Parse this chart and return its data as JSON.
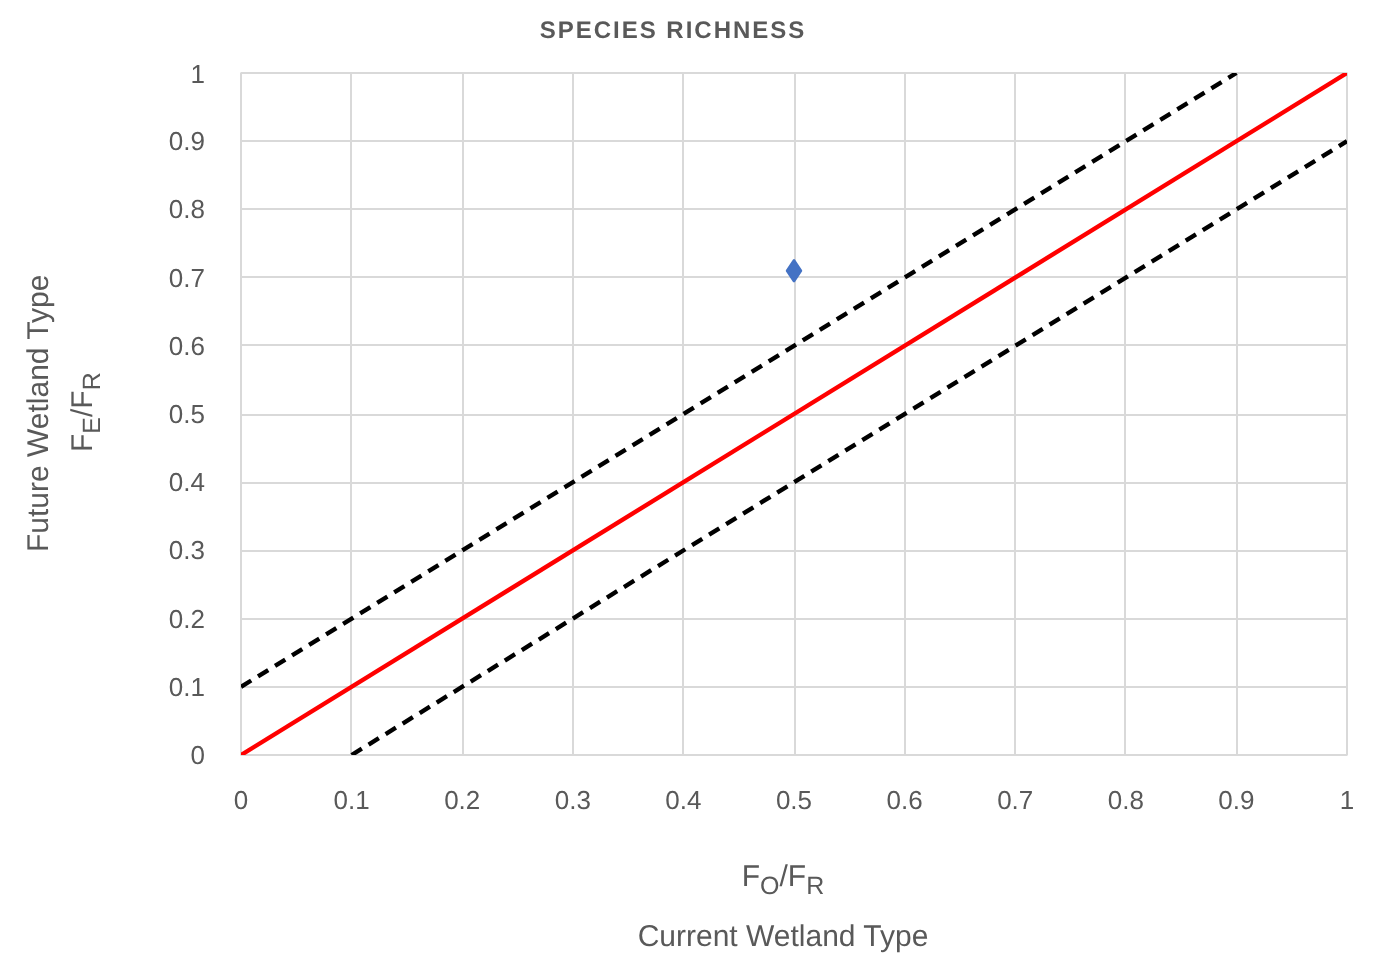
{
  "chart_data": {
    "type": "scatter",
    "title": "SPECIES RICHNESS",
    "xlabel": "F$_{O}$/F$_{R}$\nCurrent Wetland Type",
    "ylabel": "Future Wetland Type\nF$_{E}$/F$_{R}$",
    "xlim": [
      0,
      1
    ],
    "ylim": [
      0,
      1
    ],
    "xticks": [
      0,
      0.1,
      0.2,
      0.3,
      0.4,
      0.5,
      0.6,
      0.7,
      0.8,
      0.9,
      1
    ],
    "yticks": [
      0,
      0.1,
      0.2,
      0.3,
      0.4,
      0.5,
      0.6,
      0.7,
      0.8,
      0.9,
      1
    ],
    "grid": true,
    "series": [
      {
        "color": "#4472c4",
        "marker": "diamond",
        "x": [
          0.5
        ],
        "values": [
          0.71
        ]
      },
      {
        "type": "line",
        "color": "#ff0000",
        "line_style": "solid",
        "x": [
          0,
          1
        ],
        "values": [
          0,
          1
        ]
      },
      {
        "type": "line",
        "color": "#000000",
        "line_style": "dashed",
        "x": [
          0,
          0.9
        ],
        "values": [
          0.1,
          1
        ]
      },
      {
        "type": "line",
        "color": "#000000",
        "line_style": "dashed",
        "x": [
          0.1,
          1
        ],
        "values": [
          0,
          0.9
        ]
      }
    ]
  }
}
